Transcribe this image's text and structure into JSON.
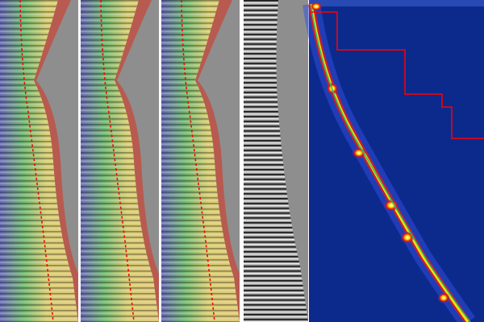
{
  "figure": {
    "panels": [
      {
        "kind": "gather-overlay"
      },
      {
        "kind": "gather-overlay"
      },
      {
        "kind": "gather-overlay"
      },
      {
        "kind": "grayscale-gather"
      },
      {
        "kind": "semblance"
      }
    ],
    "colors": {
      "background_gray": "#8e8e8e",
      "semblance_background": "#0c2a8c",
      "pick_line": "#ff0000",
      "trend_line": "#22c060",
      "overlay_outer": "#b85a50",
      "overlay_inner": "#d8c870"
    }
  }
}
